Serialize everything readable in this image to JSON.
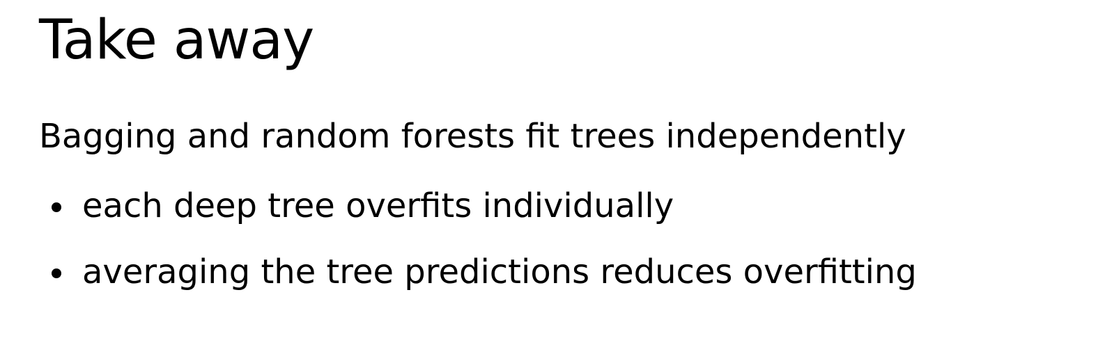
{
  "slide": {
    "title": "Take away",
    "lead": "Bagging and random forests fit trees independently",
    "bullets": [
      "each deep tree overfits individually",
      "averaging the tree predictions reduces overfitting"
    ]
  }
}
